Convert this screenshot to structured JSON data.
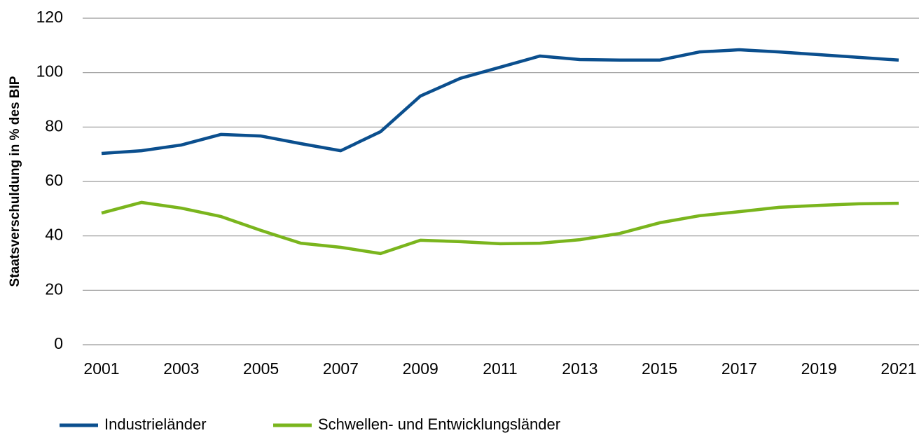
{
  "chart_data": {
    "type": "line",
    "ylabel": "Staatsverschuldung in % des BIP",
    "x": [
      2001,
      2002,
      2003,
      2004,
      2005,
      2006,
      2007,
      2008,
      2009,
      2010,
      2011,
      2012,
      2013,
      2014,
      2015,
      2016,
      2017,
      2018,
      2019,
      2020,
      2021
    ],
    "xlim": [
      2001,
      2021
    ],
    "xticks": [
      2001,
      2003,
      2005,
      2007,
      2009,
      2011,
      2013,
      2015,
      2017,
      2019,
      2021
    ],
    "ylim": [
      0,
      120
    ],
    "yticks": [
      0,
      20,
      40,
      60,
      80,
      100,
      120
    ],
    "grid": true,
    "legend": "bottom",
    "series": [
      {
        "name": "Industrieländer",
        "color": "#0b4f8e",
        "values": [
          70.3,
          71.3,
          73.4,
          77.3,
          76.7,
          73.9,
          71.3,
          78.3,
          91.4,
          97.9,
          102,
          106.1,
          104.8,
          104.6,
          104.6,
          107.6,
          108.4,
          107.6,
          106.6,
          105.6,
          104.6
        ]
      },
      {
        "name": "Schwellen- und Entwicklungsländer",
        "color": "#7ab51d",
        "values": [
          48.4,
          52.3,
          50.2,
          47.1,
          42,
          37.3,
          35.8,
          33.5,
          38.4,
          37.9,
          37.1,
          37.3,
          38.6,
          40.9,
          44.8,
          47.4,
          48.9,
          50.5,
          51.2,
          51.8,
          52
        ]
      }
    ]
  }
}
